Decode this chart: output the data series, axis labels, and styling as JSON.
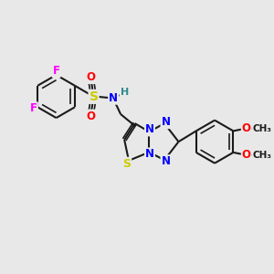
{
  "background_color": "#e8e8e8",
  "bond_color": "#1a1a1a",
  "atom_colors": {
    "F": "#ff00ff",
    "S": "#cccc00",
    "O": "#ff0000",
    "N": "#0000ff",
    "H": "#2e8b8b",
    "C": "#1a1a1a"
  },
  "figsize": [
    3.0,
    3.0
  ],
  "dpi": 100
}
